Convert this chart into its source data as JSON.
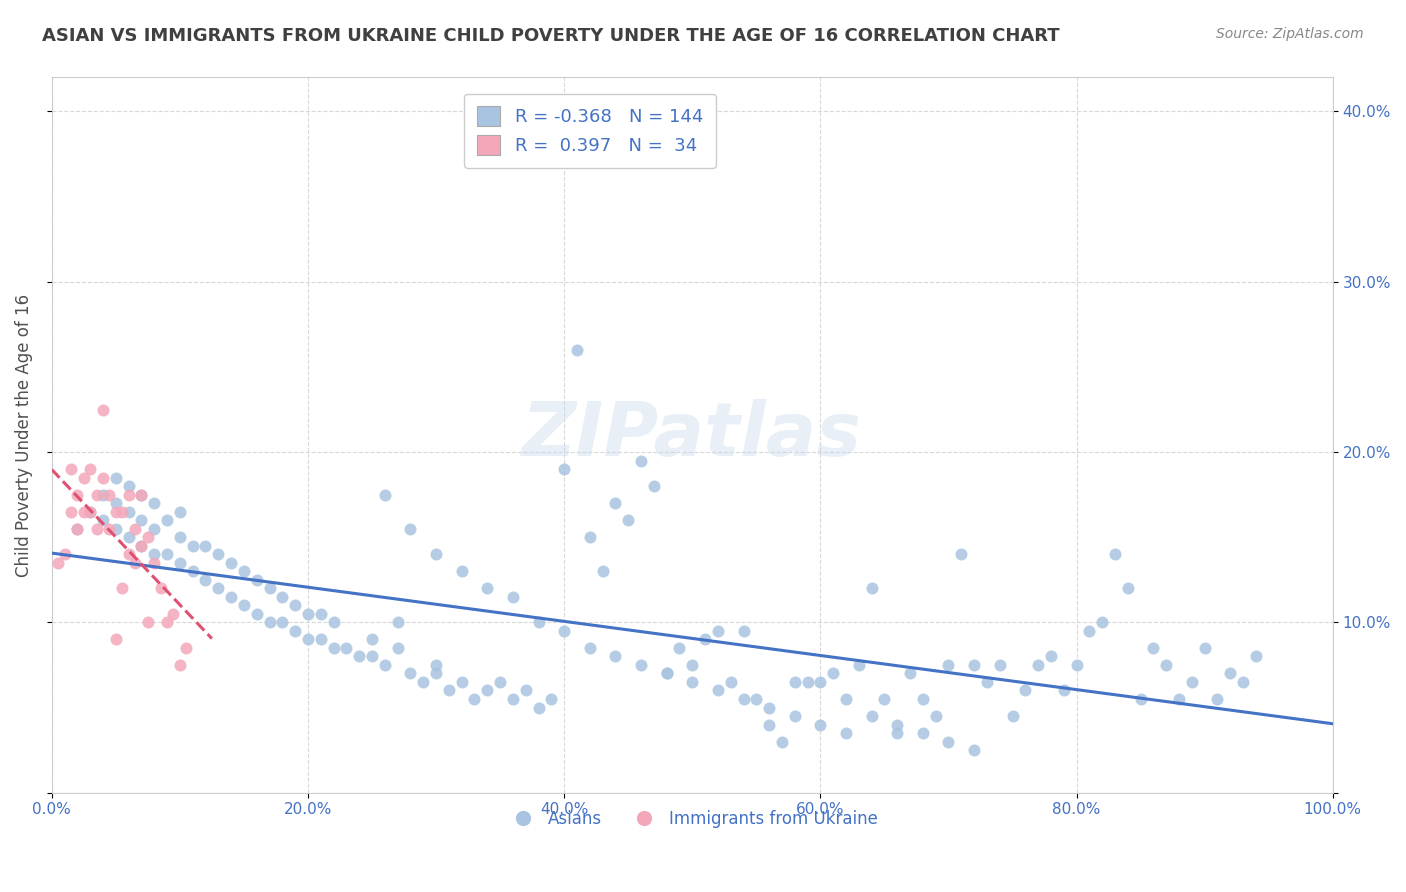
{
  "title": "ASIAN VS IMMIGRANTS FROM UKRAINE CHILD POVERTY UNDER THE AGE OF 16 CORRELATION CHART",
  "source_text": "Source: ZipAtlas.com",
  "ylabel": "Child Poverty Under the Age of 16",
  "watermark": "ZIPatlas",
  "xlim": [
    0.0,
    1.0
  ],
  "ylim": [
    0.0,
    0.42
  ],
  "xticks": [
    0.0,
    0.2,
    0.4,
    0.6,
    0.8,
    1.0
  ],
  "yticks": [
    0.0,
    0.1,
    0.2,
    0.3,
    0.4
  ],
  "xtick_labels": [
    "0.0%",
    "20.0%",
    "40.0%",
    "60.0%",
    "80.0%",
    "100.0%"
  ],
  "ytick_labels": [
    "",
    "10.0%",
    "20.0%",
    "30.0%",
    "40.0%"
  ],
  "legend_entries": [
    "Asians",
    "Immigrants from Ukraine"
  ],
  "asian_color": "#a8c4e0",
  "ukraine_color": "#f4a7b9",
  "asian_R": -0.368,
  "asian_N": 144,
  "ukraine_R": 0.397,
  "ukraine_N": 34,
  "asian_line_color": "#4472c4",
  "ukraine_line_color": "#e05070",
  "title_color": "#404040",
  "axis_label_color": "#505050",
  "tick_color": "#4472c4",
  "legend_text_color": "#4472c4",
  "grid_color": "#c8c8c8",
  "background_color": "#ffffff",
  "asian_scatter_x": [
    0.02,
    0.03,
    0.04,
    0.04,
    0.05,
    0.05,
    0.05,
    0.06,
    0.06,
    0.06,
    0.07,
    0.07,
    0.07,
    0.08,
    0.08,
    0.08,
    0.09,
    0.09,
    0.1,
    0.1,
    0.1,
    0.11,
    0.11,
    0.12,
    0.12,
    0.13,
    0.13,
    0.14,
    0.14,
    0.15,
    0.15,
    0.16,
    0.16,
    0.17,
    0.17,
    0.18,
    0.18,
    0.19,
    0.19,
    0.2,
    0.2,
    0.21,
    0.21,
    0.22,
    0.22,
    0.23,
    0.24,
    0.25,
    0.25,
    0.26,
    0.27,
    0.27,
    0.28,
    0.29,
    0.3,
    0.3,
    0.31,
    0.32,
    0.33,
    0.34,
    0.35,
    0.36,
    0.37,
    0.38,
    0.39,
    0.4,
    0.41,
    0.42,
    0.43,
    0.44,
    0.45,
    0.46,
    0.47,
    0.48,
    0.49,
    0.5,
    0.51,
    0.52,
    0.53,
    0.54,
    0.55,
    0.56,
    0.57,
    0.58,
    0.59,
    0.6,
    0.61,
    0.62,
    0.63,
    0.64,
    0.65,
    0.66,
    0.67,
    0.68,
    0.69,
    0.7,
    0.71,
    0.72,
    0.73,
    0.74,
    0.75,
    0.76,
    0.77,
    0.78,
    0.79,
    0.8,
    0.81,
    0.82,
    0.83,
    0.84,
    0.85,
    0.86,
    0.87,
    0.88,
    0.89,
    0.9,
    0.91,
    0.92,
    0.93,
    0.94,
    0.26,
    0.28,
    0.3,
    0.32,
    0.34,
    0.36,
    0.38,
    0.4,
    0.42,
    0.44,
    0.46,
    0.48,
    0.5,
    0.52,
    0.54,
    0.56,
    0.58,
    0.6,
    0.62,
    0.64,
    0.66,
    0.68,
    0.7,
    0.72
  ],
  "asian_scatter_y": [
    0.155,
    0.165,
    0.16,
    0.175,
    0.155,
    0.17,
    0.185,
    0.15,
    0.165,
    0.18,
    0.145,
    0.16,
    0.175,
    0.14,
    0.155,
    0.17,
    0.14,
    0.16,
    0.135,
    0.15,
    0.165,
    0.13,
    0.145,
    0.125,
    0.145,
    0.12,
    0.14,
    0.115,
    0.135,
    0.11,
    0.13,
    0.105,
    0.125,
    0.1,
    0.12,
    0.1,
    0.115,
    0.095,
    0.11,
    0.09,
    0.105,
    0.09,
    0.105,
    0.085,
    0.1,
    0.085,
    0.08,
    0.08,
    0.09,
    0.075,
    0.085,
    0.1,
    0.07,
    0.065,
    0.07,
    0.075,
    0.06,
    0.065,
    0.055,
    0.06,
    0.065,
    0.055,
    0.06,
    0.05,
    0.055,
    0.19,
    0.26,
    0.15,
    0.13,
    0.17,
    0.16,
    0.195,
    0.18,
    0.07,
    0.085,
    0.075,
    0.09,
    0.095,
    0.065,
    0.095,
    0.055,
    0.04,
    0.03,
    0.065,
    0.065,
    0.065,
    0.07,
    0.055,
    0.075,
    0.12,
    0.055,
    0.035,
    0.07,
    0.055,
    0.045,
    0.075,
    0.14,
    0.075,
    0.065,
    0.075,
    0.045,
    0.06,
    0.075,
    0.08,
    0.06,
    0.075,
    0.095,
    0.1,
    0.14,
    0.12,
    0.055,
    0.085,
    0.075,
    0.055,
    0.065,
    0.085,
    0.055,
    0.07,
    0.065,
    0.08,
    0.175,
    0.155,
    0.14,
    0.13,
    0.12,
    0.115,
    0.1,
    0.095,
    0.085,
    0.08,
    0.075,
    0.07,
    0.065,
    0.06,
    0.055,
    0.05,
    0.045,
    0.04,
    0.035,
    0.045,
    0.04,
    0.035,
    0.03,
    0.025
  ],
  "ukraine_scatter_x": [
    0.005,
    0.01,
    0.015,
    0.015,
    0.02,
    0.02,
    0.025,
    0.025,
    0.03,
    0.03,
    0.035,
    0.035,
    0.04,
    0.04,
    0.045,
    0.045,
    0.05,
    0.05,
    0.055,
    0.055,
    0.06,
    0.06,
    0.065,
    0.065,
    0.07,
    0.07,
    0.075,
    0.075,
    0.08,
    0.085,
    0.09,
    0.095,
    0.1,
    0.105
  ],
  "ukraine_scatter_y": [
    0.135,
    0.14,
    0.165,
    0.19,
    0.155,
    0.175,
    0.165,
    0.185,
    0.165,
    0.19,
    0.155,
    0.175,
    0.185,
    0.225,
    0.155,
    0.175,
    0.09,
    0.165,
    0.12,
    0.165,
    0.14,
    0.175,
    0.135,
    0.155,
    0.145,
    0.175,
    0.1,
    0.15,
    0.135,
    0.12,
    0.1,
    0.105,
    0.075,
    0.085
  ]
}
